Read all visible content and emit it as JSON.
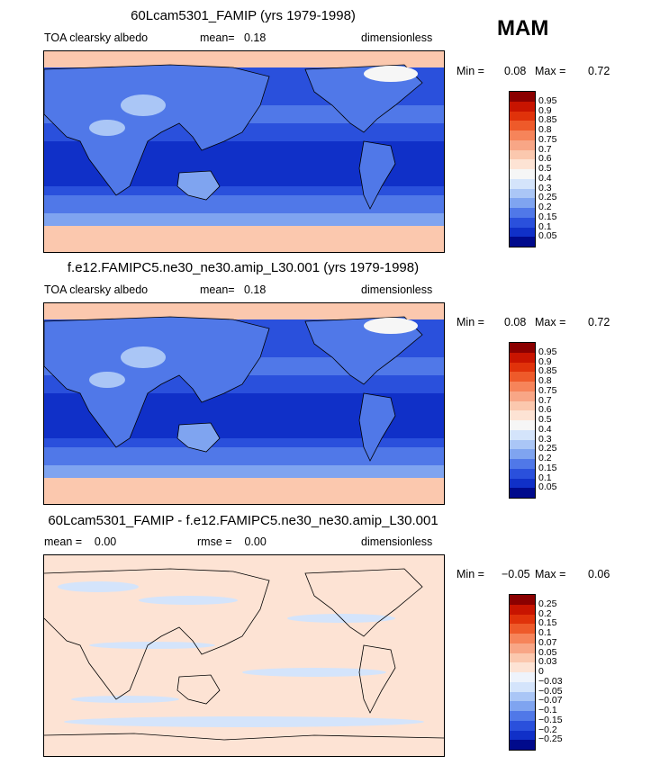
{
  "season": "MAM",
  "panels": [
    {
      "title": "60Lcam5301_FAMIP (yrs 1979-1998)",
      "left_label": "TOA clearsky albedo",
      "mid_label": "mean=   0.18",
      "right_label": "dimensionless",
      "min_label": "Min =",
      "min_value": "0.08",
      "max_label": "Max =",
      "max_value": "0.72",
      "colorbar_labels": [
        "0.95",
        "0.9",
        "0.85",
        "0.8",
        "0.75",
        "0.7",
        "0.6",
        "0.5",
        "0.4",
        "0.3",
        "0.25",
        "0.2",
        "0.15",
        "0.1",
        "0.05"
      ],
      "colorbar_colors": [
        "#8b0000",
        "#c81400",
        "#e0320a",
        "#ee5a2a",
        "#f6845a",
        "#f8a686",
        "#fbc8ae",
        "#fde3d4",
        "#f6f6f6",
        "#d4e4fb",
        "#aac6f6",
        "#7fa4f0",
        "#5078e8",
        "#2a50dc",
        "#1030c8",
        "#000a8c"
      ],
      "ocean_color": "#2a50dc",
      "tropics_color": "#1030c8",
      "land_color": "#5078e8",
      "polar_color": "#fbc8ae"
    },
    {
      "title": "f.e12.FAMIPC5.ne30_ne30.amip_L30.001 (yrs 1979-1998)",
      "left_label": "TOA clearsky albedo",
      "mid_label": "mean=   0.18",
      "right_label": "dimensionless",
      "min_label": "Min =",
      "min_value": "0.08",
      "max_label": "Max =",
      "max_value": "0.72",
      "colorbar_labels": [
        "0.95",
        "0.9",
        "0.85",
        "0.8",
        "0.75",
        "0.7",
        "0.6",
        "0.5",
        "0.4",
        "0.3",
        "0.25",
        "0.2",
        "0.15",
        "0.1",
        "0.05"
      ],
      "colorbar_colors": [
        "#8b0000",
        "#c81400",
        "#e0320a",
        "#ee5a2a",
        "#f6845a",
        "#f8a686",
        "#fbc8ae",
        "#fde3d4",
        "#f6f6f6",
        "#d4e4fb",
        "#aac6f6",
        "#7fa4f0",
        "#5078e8",
        "#2a50dc",
        "#1030c8",
        "#000a8c"
      ],
      "ocean_color": "#2a50dc",
      "tropics_color": "#1030c8",
      "land_color": "#5078e8",
      "polar_color": "#fbc8ae"
    },
    {
      "title": "60Lcam5301_FAMIP - f.e12.FAMIPC5.ne30_ne30.amip_L30.001",
      "left_label": "mean =    0.00",
      "mid_label": "rmse =    0.00",
      "right_label": "dimensionless",
      "min_label": "Min =",
      "min_value": "−0.05",
      "max_label": "Max =",
      "max_value": "0.06",
      "colorbar_labels": [
        "0.25",
        "0.2",
        "0.15",
        "0.1",
        "0.07",
        "0.05",
        "0.03",
        "0",
        "−0.03",
        "−0.05",
        "−0.07",
        "−0.1",
        "−0.15",
        "−0.2",
        "−0.25"
      ],
      "colorbar_colors": [
        "#8b0000",
        "#c81400",
        "#e0320a",
        "#ee5a2a",
        "#f6845a",
        "#f8a686",
        "#fbc8ae",
        "#fde3d4",
        "#eef3fb",
        "#d4e4fb",
        "#aac6f6",
        "#7fa4f0",
        "#5078e8",
        "#2a50dc",
        "#1030c8",
        "#000a8c"
      ],
      "ocean_color": "#fde3d4",
      "tropics_color": "#fde3d4",
      "land_color": "#fde3d4",
      "polar_color": "#fde3d4"
    }
  ]
}
